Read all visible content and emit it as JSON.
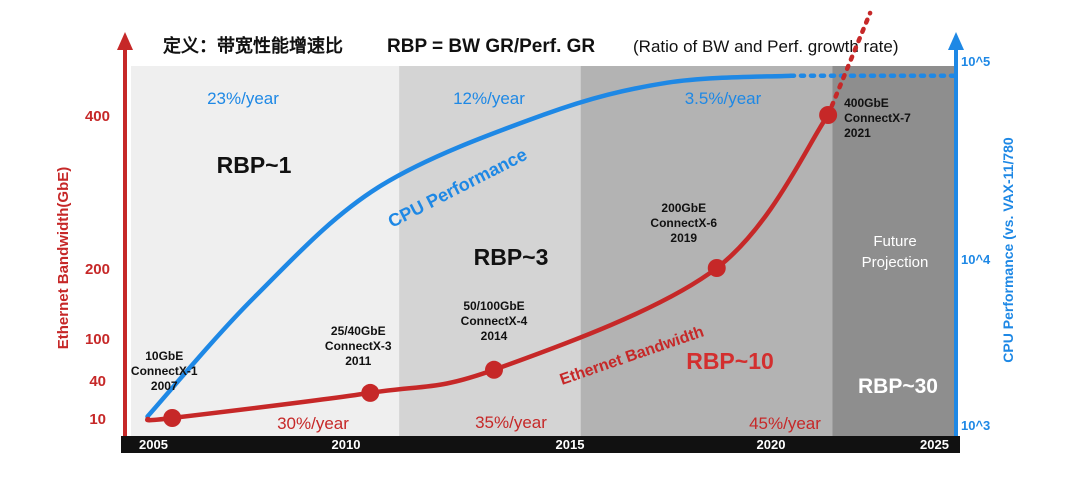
{
  "title": {
    "definition": "定义：带宽性能增速比",
    "formula": "RBP = BW GR/Perf. GR",
    "note": "(Ratio of BW and Perf. growth rate)"
  },
  "colors": {
    "bandwidth": "#c62828",
    "performance": "#1e88e5",
    "period1": "#efefef",
    "period2": "#d4d4d4",
    "period3": "#b3b3b3",
    "period4": "#8e8e8e",
    "axis_bar": "#111111"
  },
  "chart_data": {
    "type": "line",
    "xlim": [
      2005,
      2025
    ],
    "x_ticks": [
      "2005",
      "2010",
      "2015",
      "2020",
      "2025"
    ],
    "left_axis": {
      "label": "Ethernet Bandwidth(GbE)",
      "ticks": [
        "10",
        "40",
        "100",
        "200",
        "400"
      ]
    },
    "right_axis": {
      "label": "CPU Performance (vs. VAX-11/780",
      "ticks": [
        "10^3",
        "10^4",
        "10^5"
      ],
      "scale": "log"
    },
    "periods": [
      {
        "range": [
          2005,
          2011.5
        ],
        "perf_rate": "23%/year",
        "bw_rate": "30%/year",
        "rbp": "RBP~1"
      },
      {
        "range": [
          2011.5,
          2015.9
        ],
        "perf_rate": "12%/year",
        "bw_rate": "35%/year",
        "rbp": "RBP~3"
      },
      {
        "range": [
          2015.9,
          2022
        ],
        "perf_rate": "3.5%/year",
        "bw_rate": "45%/year",
        "rbp": "RBP~10"
      },
      {
        "range": [
          2022,
          2025
        ],
        "label_line1": "Future",
        "label_line2": "Projection",
        "rbp": "RBP~30"
      }
    ],
    "series": [
      {
        "name": "Ethernet Bandwidth",
        "points": [
          {
            "year": 2006,
            "value": 10,
            "label": [
              "10GbE",
              "ConnectX-1",
              "2007"
            ]
          },
          {
            "year": 2010.8,
            "value": 25,
            "label": [
              "25/40GbE",
              "ConnectX-3",
              "2011"
            ]
          },
          {
            "year": 2013.8,
            "value": 50,
            "label": [
              "50/100GbE",
              "ConnectX-4",
              "2014"
            ]
          },
          {
            "year": 2019.2,
            "value": 200,
            "label": [
              "200GbE",
              "ConnectX-6",
              "2019"
            ]
          },
          {
            "year": 2021.9,
            "value": 400,
            "label": [
              "400GbE",
              "ConnectX-7",
              "2021"
            ]
          }
        ]
      },
      {
        "name": "CPU Performance",
        "points": [
          {
            "year": 2005.4,
            "value": 1100
          },
          {
            "year": 2008,
            "value": 5000
          },
          {
            "year": 2011,
            "value": 20000
          },
          {
            "year": 2015,
            "value": 50000
          },
          {
            "year": 2018,
            "value": 75000
          },
          {
            "year": 2021,
            "value": 82000
          },
          {
            "year": 2025,
            "value": 82000
          }
        ]
      }
    ]
  }
}
